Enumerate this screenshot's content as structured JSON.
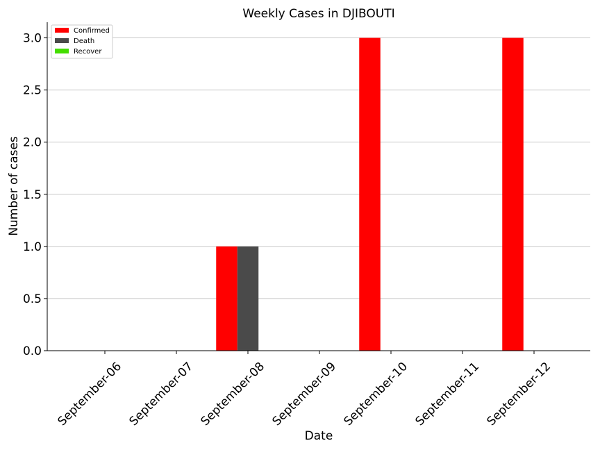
{
  "chart_data": {
    "type": "bar",
    "title": "Weekly Cases in DJIBOUTI",
    "xlabel": "Date",
    "ylabel": "Number of cases",
    "categories": [
      "September-06",
      "September-07",
      "September-08",
      "September-09",
      "September-10",
      "September-11",
      "September-12"
    ],
    "series": [
      {
        "name": "Confirmed",
        "color": "#ff0000",
        "values": [
          0,
          0,
          1,
          0,
          3,
          0,
          3
        ]
      },
      {
        "name": "Death",
        "color": "#4a4a4a",
        "values": [
          0,
          0,
          1,
          0,
          0,
          0,
          0
        ]
      },
      {
        "name": "Recover",
        "color": "#44dd00",
        "values": [
          0,
          0,
          0,
          0,
          0,
          0,
          0
        ]
      }
    ],
    "ylim": [
      0,
      3.15
    ],
    "yticks": [
      "0.0",
      "0.5",
      "1.0",
      "1.5",
      "2.0",
      "2.5",
      "3.0"
    ],
    "grid": "horizontal",
    "legend": "top-left"
  }
}
